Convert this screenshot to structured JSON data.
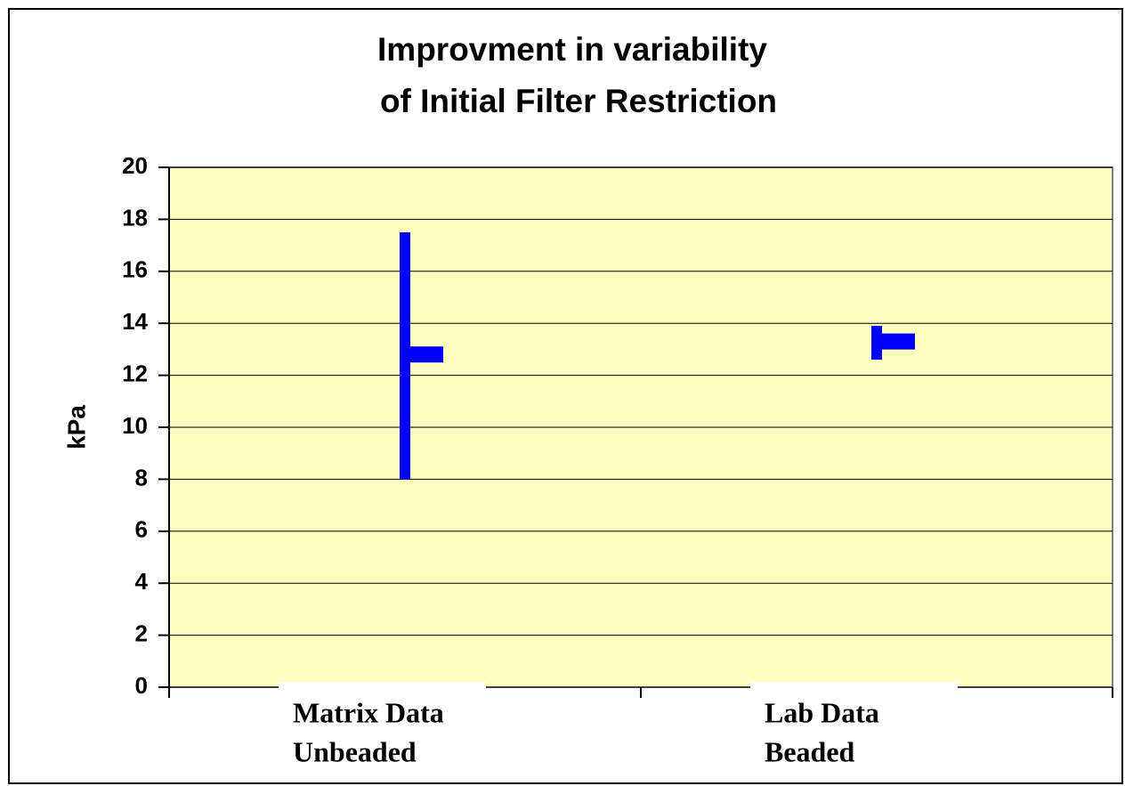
{
  "chart_data": {
    "type": "hlc",
    "title": [
      "Improvment in variability",
      "of Initial Filter Restriction"
    ],
    "ylabel": "kPa",
    "categories": [
      [
        "Matrix Data",
        "Unbeaded"
      ],
      [
        "Lab Data",
        "Beaded"
      ]
    ],
    "high": [
      17.5,
      13.9
    ],
    "low": [
      8,
      12.6
    ],
    "close": [
      12.8,
      13.3
    ],
    "color": "#0000ff",
    "ylim": [
      0,
      20
    ],
    "yticks": [
      0,
      2,
      4,
      6,
      8,
      10,
      12,
      14,
      16,
      18,
      20
    ],
    "grid": true
  }
}
